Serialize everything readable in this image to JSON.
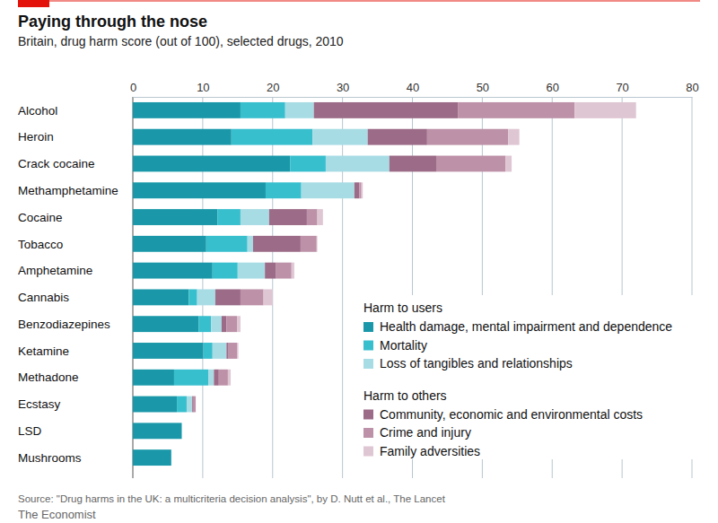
{
  "chart_data": {
    "type": "bar",
    "orientation": "horizontal",
    "stacked": true,
    "grid": true,
    "legend": "bottom right",
    "title": "Paying through the nose",
    "subtitle": "Britain, drug harm score (out of 100), selected drugs, 2010",
    "source": "Source: \"Drug harms in the UK: a multicriteria decision analysis\", by D. Nutt et al., The Lancet",
    "credit": "The Economist",
    "categories": [
      "Alcohol",
      "Heroin",
      "Crack cocaine",
      "Methamphetamine",
      "Cocaine",
      "Tobacco",
      "Amphetamine",
      "Cannabis",
      "Benzodiazepines",
      "Ketamine",
      "Methadone",
      "Ecstasy",
      "LSD",
      "Mushrooms"
    ],
    "xlim": [
      0,
      80
    ],
    "xticks": [
      0,
      10,
      20,
      30,
      40,
      50,
      60,
      70,
      80
    ],
    "series": [
      {
        "name": "Health damage, mental impairment and dependence",
        "group": "Harm to users",
        "color": "#1a98a9",
        "values": [
          15.4,
          14.1,
          22.5,
          19.0,
          12.1,
          10.5,
          11.4,
          8.0,
          9.4,
          10.1,
          5.9,
          6.3,
          7.0,
          5.5
        ]
      },
      {
        "name": "Mortality",
        "group": "Harm to users",
        "color": "#38bfce",
        "values": [
          6.4,
          11.6,
          5.1,
          5.1,
          3.3,
          5.9,
          3.6,
          1.2,
          1.8,
          1.3,
          4.9,
          1.4,
          0,
          0
        ]
      },
      {
        "name": "Loss of tangibles and relationships",
        "group": "Harm to users",
        "color": "#a8dce5",
        "values": [
          4.1,
          7.9,
          9.1,
          7.6,
          4.1,
          0.8,
          3.9,
          2.6,
          1.5,
          2.0,
          0.8,
          0.8,
          0,
          0
        ]
      },
      {
        "name": "Community, economic and environmental costs",
        "group": "Harm to others",
        "color": "#9c6b87",
        "values": [
          20.6,
          8.5,
          6.7,
          0.7,
          5.4,
          6.8,
          1.6,
          3.6,
          0.7,
          0.3,
          0.7,
          0.2,
          0,
          0
        ]
      },
      {
        "name": "Crime and injury",
        "group": "Harm to others",
        "color": "#bd91a8",
        "values": [
          16.7,
          11.6,
          9.9,
          0.3,
          1.5,
          2.3,
          2.2,
          3.3,
          1.5,
          1.2,
          1.3,
          0.3,
          0,
          0
        ]
      },
      {
        "name": "Family adversities",
        "group": "Harm to others",
        "color": "#dfc6d3",
        "values": [
          8.8,
          1.6,
          0.9,
          0.2,
          0.8,
          0.1,
          0.4,
          1.3,
          0.5,
          0.2,
          0.4,
          0,
          0,
          0
        ]
      }
    ]
  }
}
